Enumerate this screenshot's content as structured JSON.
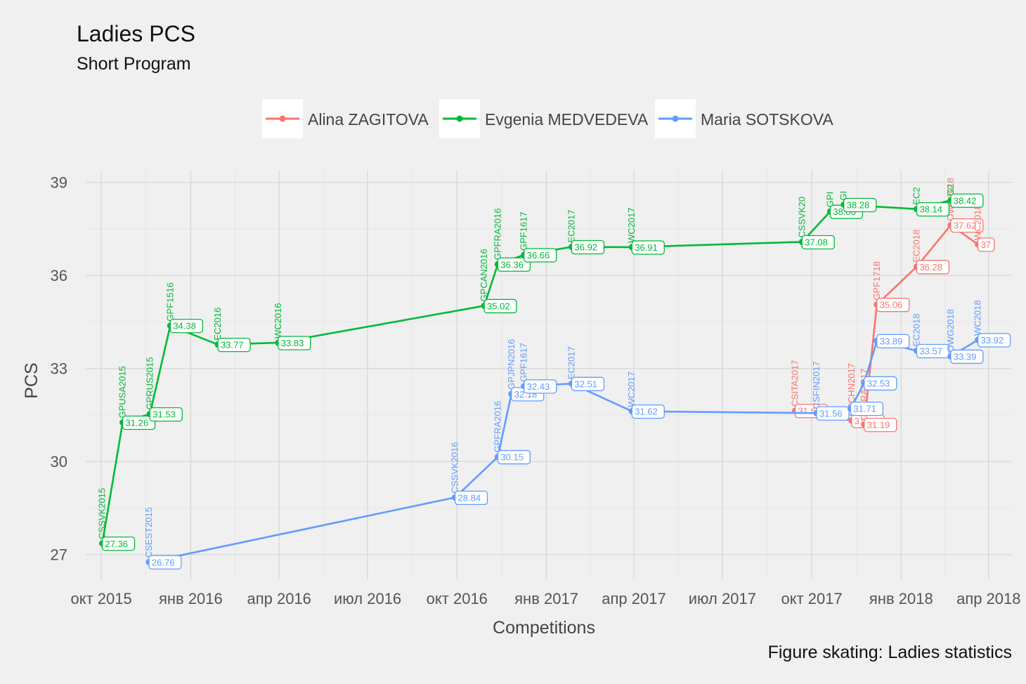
{
  "chart_data": {
    "type": "line",
    "title": "Ladies PCS",
    "subtitle": "Short Program",
    "xlabel": "Competitions",
    "ylabel": "PCS",
    "caption": "Figure skating: Ladies statistics",
    "ylim": [
      26.2,
      39.4
    ],
    "xlim": [
      "2015-09-15",
      "2018-04-25"
    ],
    "y_ticks": [
      27,
      30,
      33,
      36,
      39
    ],
    "x_ticks": [
      {
        "date": "2015-10-01",
        "label": "окт 2015"
      },
      {
        "date": "2016-01-01",
        "label": "янв 2016"
      },
      {
        "date": "2016-04-01",
        "label": "апр 2016"
      },
      {
        "date": "2016-07-01",
        "label": "июл 2016"
      },
      {
        "date": "2016-10-01",
        "label": "окт 2016"
      },
      {
        "date": "2017-01-01",
        "label": "янв 2017"
      },
      {
        "date": "2017-04-01",
        "label": "апр 2017"
      },
      {
        "date": "2017-07-01",
        "label": "июл 2017"
      },
      {
        "date": "2017-10-01",
        "label": "окт 2017"
      },
      {
        "date": "2018-01-01",
        "label": "янв 2018"
      },
      {
        "date": "2018-04-01",
        "label": "апр 2018"
      }
    ],
    "grid": true,
    "legend_position": "top",
    "series": [
      {
        "name": "Alina ZAGITOVA",
        "color": "#F8766D",
        "points": [
          {
            "date": "2017-09-14",
            "value": 31.64,
            "label": "31.64",
            "event": "CSITA2017"
          },
          {
            "date": "2017-11-11",
            "value": 31.32,
            "label": "31.32",
            "event": "GPCHN2017"
          },
          {
            "date": "2017-11-24",
            "value": 31.19,
            "label": "31.19",
            "event": "GPFRA2017"
          },
          {
            "date": "2017-12-07",
            "value": 35.06,
            "label": "35.06",
            "event": "GPF1718"
          },
          {
            "date": "2018-01-17",
            "value": 36.28,
            "label": "36.28",
            "event": "EC2018"
          },
          {
            "date": "2018-02-21",
            "value": 37.62,
            "label": "37.62",
            "event": "OWG2018"
          },
          {
            "date": "2018-03-21",
            "value": 37.0,
            "label": "37",
            "event": "WC2018"
          }
        ]
      },
      {
        "name": "Evgenia MEDVEDEVA",
        "color": "#00BA38",
        "points": [
          {
            "date": "2015-10-02",
            "value": 27.36,
            "label": "27.36",
            "event": "CSSVK2015"
          },
          {
            "date": "2015-10-23",
            "value": 31.26,
            "label": "31.26",
            "event": "GPUSA2015"
          },
          {
            "date": "2015-11-20",
            "value": 31.53,
            "label": "31.53",
            "event": "GPRUS2015"
          },
          {
            "date": "2015-12-11",
            "value": 34.38,
            "label": "34.38",
            "event": "GPF1516"
          },
          {
            "date": "2016-01-29",
            "value": 33.77,
            "label": "33.77",
            "event": "EC2016"
          },
          {
            "date": "2016-03-31",
            "value": 33.83,
            "label": "33.83",
            "event": "WC2016"
          },
          {
            "date": "2016-10-29",
            "value": 35.02,
            "label": "35.02",
            "event": "GPCAN2016"
          },
          {
            "date": "2016-11-12",
            "value": 36.36,
            "label": "36.36",
            "event": "GPFRA2016"
          },
          {
            "date": "2016-12-09",
            "value": 36.66,
            "label": "36.66",
            "event": "GPF1617"
          },
          {
            "date": "2017-01-27",
            "value": 36.92,
            "label": "36.92",
            "event": "EC2017"
          },
          {
            "date": "2017-03-30",
            "value": 36.91,
            "label": "36.91",
            "event": "WC2017"
          },
          {
            "date": "2017-09-21",
            "value": 37.08,
            "label": "37.08",
            "event": "CSSVK20"
          },
          {
            "date": "2017-10-20",
            "value": 38.06,
            "label": "38.06",
            "event": "GPI"
          },
          {
            "date": "2017-11-03",
            "value": 38.28,
            "label": "38.28",
            "event": "GI"
          },
          {
            "date": "2018-01-17",
            "value": 38.14,
            "label": "38.14",
            "event": "EC2"
          },
          {
            "date": "2018-02-21",
            "value": 38.42,
            "label": "38.42",
            "event": "G2"
          }
        ]
      },
      {
        "name": "Maria SOTSKOVA",
        "color": "#619CFF",
        "points": [
          {
            "date": "2015-11-19",
            "value": 26.76,
            "label": "26.76",
            "event": "CSEST2015"
          },
          {
            "date": "2016-09-29",
            "value": 28.84,
            "label": "28.84",
            "event": "CSSVK2016"
          },
          {
            "date": "2016-11-12",
            "value": 30.15,
            "label": "30.15",
            "event": "GPFRA2016"
          },
          {
            "date": "2016-11-26",
            "value": 32.18,
            "label": "32.18",
            "event": "GPJPN2016"
          },
          {
            "date": "2016-12-09",
            "value": 32.43,
            "label": "32.43",
            "event": "GPF1617"
          },
          {
            "date": "2017-01-27",
            "value": 32.51,
            "label": "32.51",
            "event": "EC2017"
          },
          {
            "date": "2017-03-30",
            "value": 31.62,
            "label": "31.62",
            "event": "WC2017"
          },
          {
            "date": "2017-10-06",
            "value": 31.56,
            "label": "31.56",
            "event": "CSFIN2017"
          },
          {
            "date": "2017-11-10",
            "value": 31.71,
            "label": "31.71",
            "event": ""
          },
          {
            "date": "2017-11-24",
            "value": 32.53,
            "label": "32.53",
            "event": ""
          },
          {
            "date": "2017-12-07",
            "value": 33.89,
            "label": "33.89",
            "event": ""
          },
          {
            "date": "2018-01-17",
            "value": 33.57,
            "label": "33.57",
            "event": "EC2018"
          },
          {
            "date": "2018-02-21",
            "value": 33.39,
            "label": "33.39",
            "event": "OWG2018"
          },
          {
            "date": "2018-03-21",
            "value": 33.92,
            "label": "33.92",
            "event": "WC2018"
          }
        ]
      }
    ]
  }
}
